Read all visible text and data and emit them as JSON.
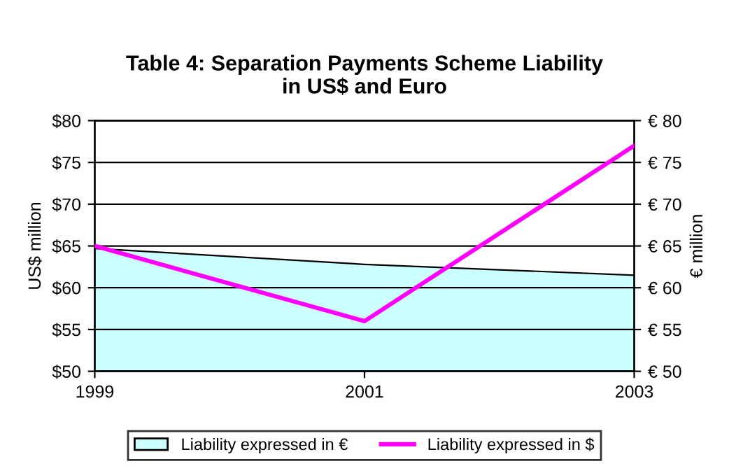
{
  "chart_data": {
    "type": "area",
    "title": "Table 4: Separation Payments Scheme Liability\nin US$ and Euro",
    "ylabel": "US$ million",
    "y2label": "€ million",
    "x": [
      1999,
      2001,
      2003
    ],
    "xlim": [
      1999,
      2003
    ],
    "xticks": [
      1999,
      2001,
      2003
    ],
    "ylim": [
      50,
      80
    ],
    "yticks": [
      {
        "value": 50,
        "label": "$50"
      },
      {
        "value": 55,
        "label": "$55"
      },
      {
        "value": 60,
        "label": "$60"
      },
      {
        "value": 65,
        "label": "$65"
      },
      {
        "value": 70,
        "label": "$70"
      },
      {
        "value": 75,
        "label": "$75"
      },
      {
        "value": 80,
        "label": "$80"
      }
    ],
    "y2lim": [
      50,
      80
    ],
    "y2ticks": [
      {
        "value": 50,
        "label": "€ 50"
      },
      {
        "value": 55,
        "label": "€ 55"
      },
      {
        "value": 60,
        "label": "€ 60"
      },
      {
        "value": 65,
        "label": "€ 65"
      },
      {
        "value": 70,
        "label": "€ 70"
      },
      {
        "value": 75,
        "label": "€ 75"
      },
      {
        "value": 80,
        "label": "€ 80"
      }
    ],
    "grid": "y",
    "legend": "bottom",
    "series": [
      {
        "name": "Liability expressed in €",
        "axis": "y2",
        "color": "#ccffff",
        "values": [
          64.7,
          62.8,
          61.5
        ]
      },
      {
        "name": "Liability expressed in $",
        "type": "line",
        "color": "#ff00ff",
        "values": [
          65,
          56,
          77
        ]
      }
    ]
  }
}
